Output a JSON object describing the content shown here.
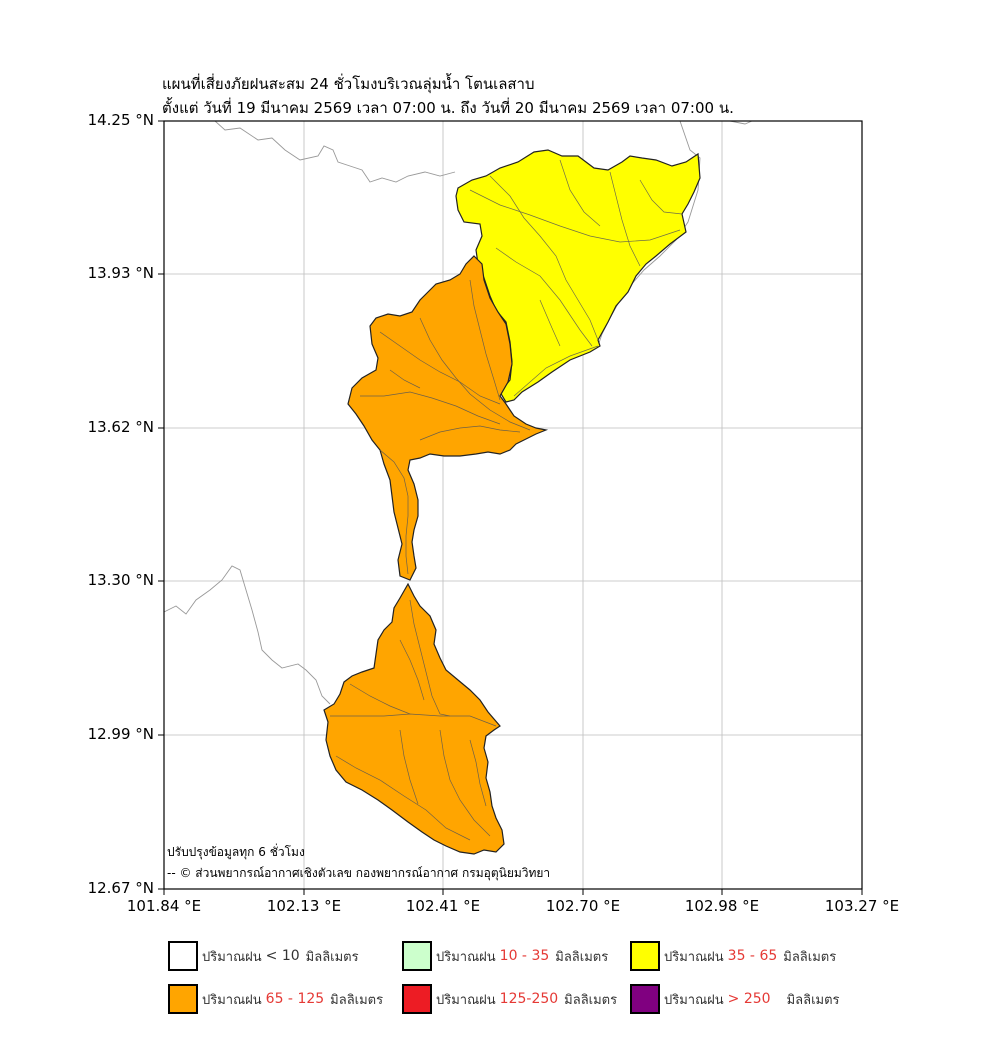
{
  "title": {
    "line1": "แผนที่เสี่ยงภัยฝนสะสม 24 ชั่วโมงบริเวณลุ่มน้ำ โตนเลสาบ",
    "line2": "ตั้งแต่ วันที่ 19 มีนาคม 2569 เวลา 07:00 น. ถึง วันที่ 20 มีนาคม 2569 เวลา 07:00 น."
  },
  "axes": {
    "y_ticks": [
      "14.25 °N",
      "13.93 °N",
      "13.62 °N",
      "13.30 °N",
      "12.99 °N",
      "12.67 °N"
    ],
    "x_ticks": [
      "101.84 °E",
      "102.13 °E",
      "102.41 °E",
      "102.70 °E",
      "102.98 °E",
      "103.27 °E"
    ],
    "lat_range": [
      12.67,
      14.25
    ],
    "lon_range": [
      101.84,
      103.27
    ],
    "grid": true
  },
  "notes": {
    "update": "ปรับปรุงข้อมูลทุก 6 ชั่วโมง",
    "credit": "-- © ส่วนพยากรณ์อากาศเชิงตัวเลข กองพยากรณ์อากาศ กรมอุตุนิยมวิทยา"
  },
  "regions": [
    {
      "name": "north-basin",
      "category": "35 - 65",
      "color": "#FFFF00"
    },
    {
      "name": "central-basin",
      "category": "65 - 125",
      "color": "#FFA500"
    },
    {
      "name": "south-basin",
      "category": "65 - 125",
      "color": "#FFA500"
    }
  ],
  "legend": [
    {
      "prefix": "ปริมาณฝน",
      "range": "< 10",
      "suffix": "มิลลิเมตร",
      "color": "#FFFFFF"
    },
    {
      "prefix": "ปริมาณฝน",
      "range": "10 - 35",
      "suffix": "มิลลิเมตร",
      "color": "#CCFFCC"
    },
    {
      "prefix": "ปริมาณฝน",
      "range": "35 - 65",
      "suffix": "มิลลิเมตร",
      "color": "#FFFF00"
    },
    {
      "prefix": "ปริมาณฝน",
      "range": "65 - 125",
      "suffix": "มิลลิเมตร",
      "color": "#FFA500"
    },
    {
      "prefix": "ปริมาณฝน",
      "range": "125-250",
      "suffix": "มิลลิเมตร",
      "color": "#ED1C24"
    },
    {
      "prefix": "ปริมาณฝน",
      "range": "> 250",
      "suffix": "มิลลิเมตร",
      "color": "#800080"
    }
  ]
}
